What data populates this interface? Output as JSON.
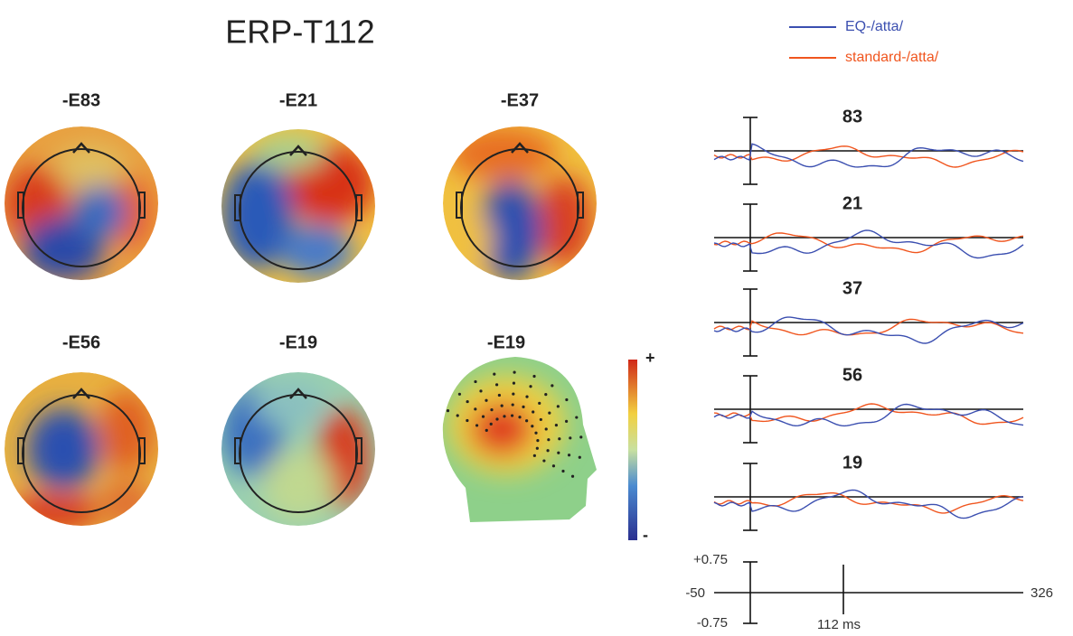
{
  "header": {
    "title": "ERP-T112"
  },
  "legend": [
    {
      "label": "EQ-/atta/",
      "color": "#3b4fb0"
    },
    {
      "label": "standard-/atta/",
      "color": "#f0551e"
    }
  ],
  "maps": [
    "-E83",
    "-E21",
    "-E37",
    "-E56",
    "-E19",
    "-E19"
  ],
  "colorbar": {
    "high": "+",
    "low": "-"
  },
  "waveforms": [
    "83",
    "21",
    "37",
    "56",
    "19"
  ],
  "scale": {
    "top": "+0.75",
    "left": "-50",
    "right": "326",
    "bottom": "-0.75",
    "marker": "112 ms"
  }
}
